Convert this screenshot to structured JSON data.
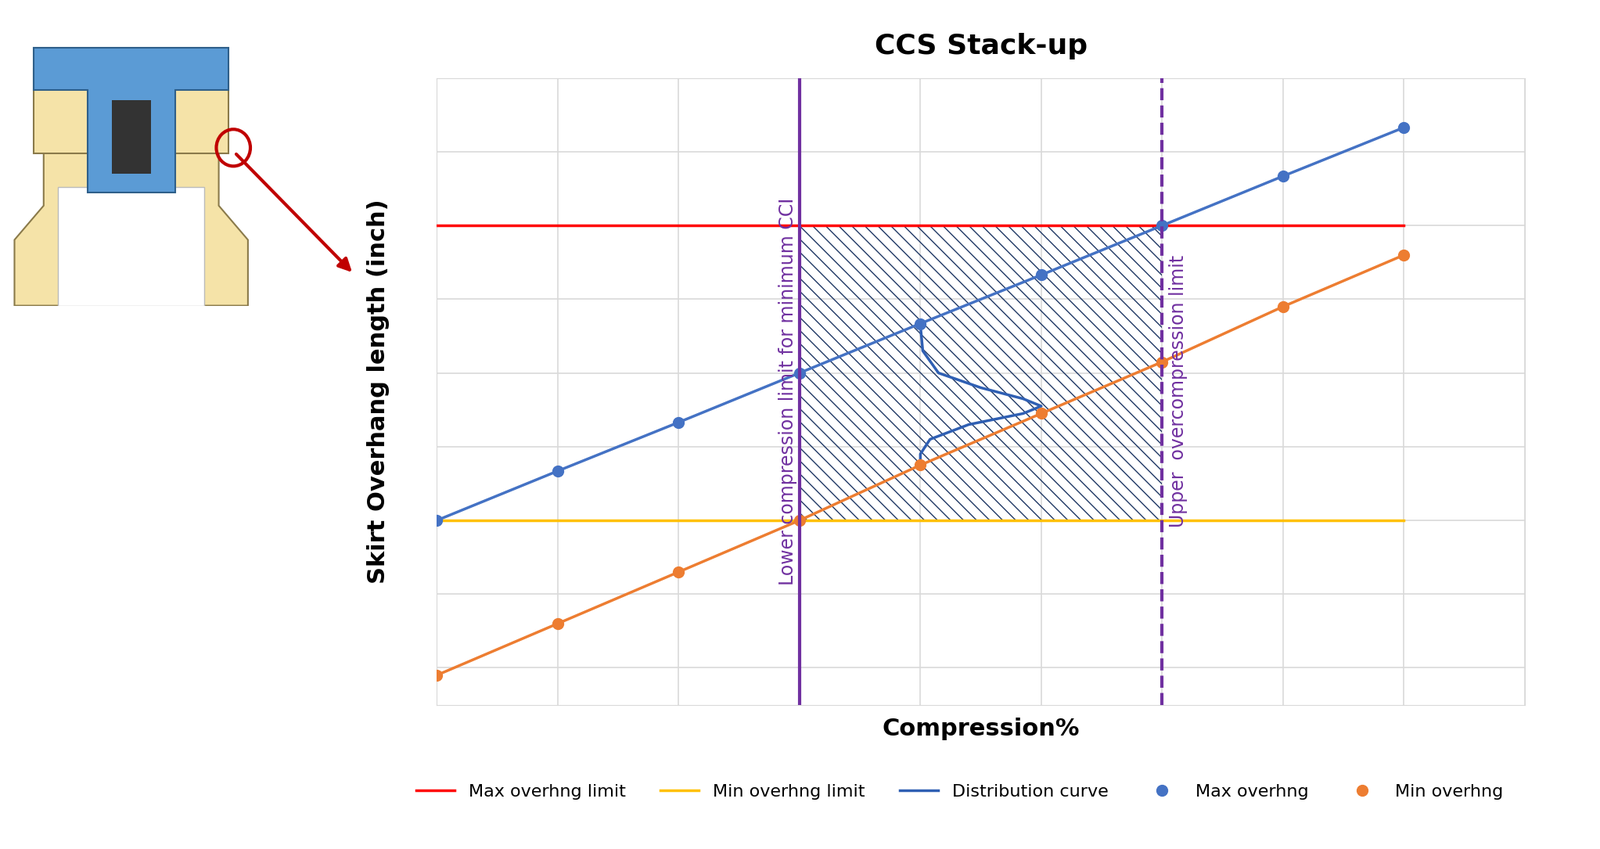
{
  "chart_data": {
    "type": "line",
    "title": "CCS Stack-up",
    "x_label": "Compression%",
    "y_label": "Skirt Overhang length (inch)",
    "x": [
      0,
      1,
      2,
      3,
      4,
      5,
      6,
      7,
      8
    ],
    "xlim": [
      0,
      9
    ],
    "ylim": [
      -0.5,
      8
    ],
    "xticks": [
      0,
      1,
      2,
      3,
      4,
      5,
      6,
      7,
      8,
      9
    ],
    "yticks": [
      0,
      1,
      2,
      3,
      4,
      5,
      6,
      7,
      8
    ],
    "grid": true,
    "tick_labels": false,
    "legend": "lower center",
    "series": [
      {
        "name": "Max overhng limit",
        "color": "#ff0000",
        "line_style": "solid",
        "values": [
          6,
          6,
          6,
          6,
          6,
          6,
          6,
          6,
          6
        ]
      },
      {
        "name": "Min overhng limit",
        "color": "#ffc000",
        "line_style": "solid",
        "values": [
          2,
          2,
          2,
          2,
          2,
          2,
          2,
          2,
          2
        ]
      },
      {
        "name": "Distribution curve",
        "color": "#2f5fb3",
        "line_style": "solid",
        "x": [
          4,
          4.02,
          4.15,
          4.5,
          4.85,
          5.0,
          4.85,
          4.4,
          4.08,
          4.0,
          4.0
        ],
        "values": [
          4.65,
          4.3,
          4.0,
          3.8,
          3.65,
          3.55,
          3.45,
          3.3,
          3.1,
          2.9,
          2.75
        ]
      },
      {
        "name": "Max overhng",
        "color": "#4472c4",
        "line_style": "solid",
        "marker": "o",
        "values": [
          2.0,
          2.67,
          3.33,
          4.0,
          4.67,
          5.33,
          6.0,
          6.67,
          7.33
        ]
      },
      {
        "name": "Min overhng",
        "color": "#ed7d31",
        "line_style": "solid",
        "marker": "o",
        "values": [
          -0.1,
          0.6,
          1.3,
          2.0,
          2.75,
          3.45,
          4.15,
          4.9,
          5.6
        ]
      }
    ],
    "vlines": [
      {
        "x": 3,
        "label": "Lower compression limit for minimum CCI",
        "color": "#7030a0",
        "line_style": "solid"
      },
      {
        "x": 6,
        "label": "Upper  overcompression limit",
        "color": "#7030a0",
        "line_style": "dashed"
      }
    ]
  }
}
